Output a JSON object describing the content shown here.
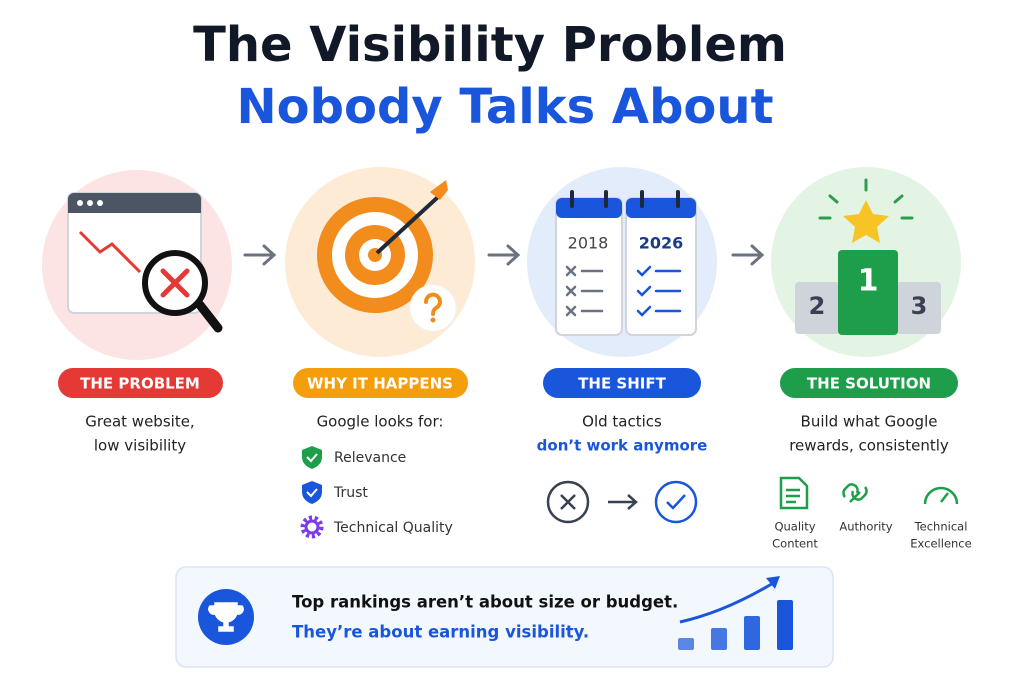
{
  "title": {
    "line1": "The Visibility Problem",
    "line2": "Nobody Talks About"
  },
  "steps": [
    {
      "label": "THE PROBLEM",
      "text": [
        "Great website,",
        "low visibility"
      ]
    },
    {
      "label": "WHY IT HAPPENS",
      "text": [
        "Google looks for:"
      ],
      "items": [
        "Relevance",
        "Trust",
        "Technical Quality"
      ]
    },
    {
      "label": "THE SHIFT",
      "text": [
        "Old tactics",
        "don’t work anymore"
      ],
      "years": [
        "2018",
        "2026"
      ]
    },
    {
      "label": "THE SOLUTION",
      "text": [
        "Build what Google",
        "rewards, consistently"
      ],
      "podium": [
        "1",
        "2",
        "3"
      ],
      "items": [
        [
          "Quality",
          "Content"
        ],
        [
          "Authority"
        ],
        [
          "Technical",
          "Excellence"
        ]
      ]
    }
  ],
  "footer": {
    "line1": "Top rankings aren’t about size or budget.",
    "line2": "They’re about earning visibility."
  }
}
